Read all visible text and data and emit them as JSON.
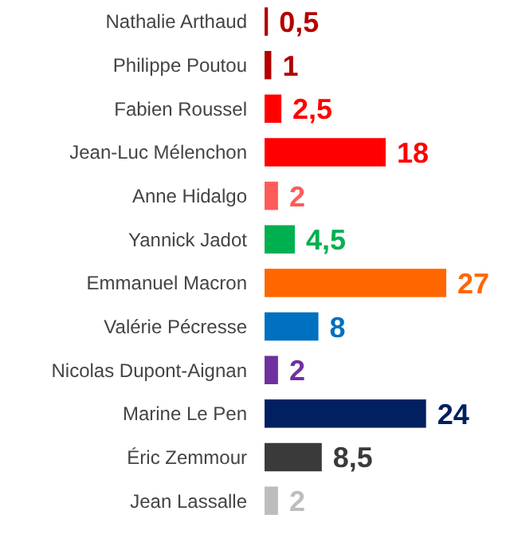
{
  "chart_data": {
    "type": "bar",
    "orientation": "horizontal",
    "categories": [
      "Nathalie Arthaud",
      "Philippe Poutou",
      "Fabien Roussel",
      "Jean-Luc Mélenchon",
      "Anne Hidalgo",
      "Yannick Jadot",
      "Emmanuel Macron",
      "Valérie Pécresse",
      "Nicolas Dupont-Aignan",
      "Marine Le Pen",
      "Éric Zemmour",
      "Jean Lassalle"
    ],
    "values": [
      0.5,
      1,
      2.5,
      18,
      2,
      4.5,
      27,
      8,
      2,
      24,
      8.5,
      2
    ],
    "colors": [
      "#b30000",
      "#b30000",
      "#ff0000",
      "#ff0000",
      "#ff5b5b",
      "#00b050",
      "#ff6600",
      "#0070c0",
      "#7030a0",
      "#002060",
      "#3a3a3a",
      "#bdbdbd"
    ],
    "value_labels": [
      "0,5",
      "1",
      "2,5",
      "18",
      "2",
      "4,5",
      "27",
      "8",
      "2",
      "24",
      "8,5",
      "2"
    ]
  }
}
